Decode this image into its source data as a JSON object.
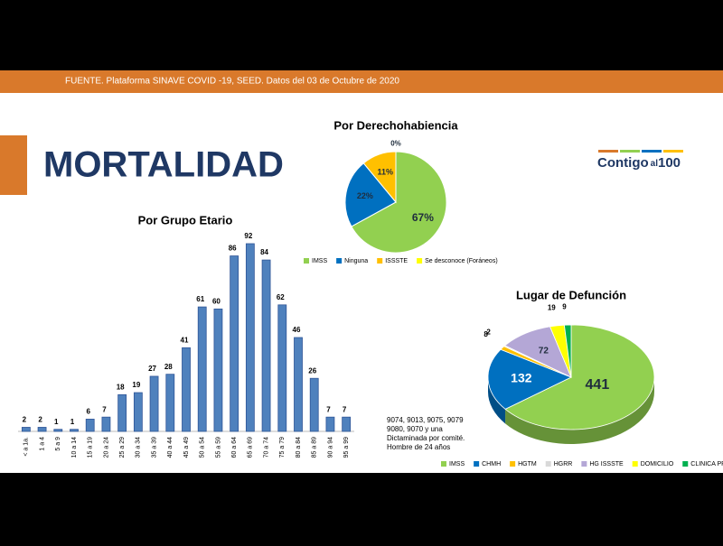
{
  "header": {
    "source": "FUENTE. Plataforma SINAVE COVID -19, SEED. Datos del 03 de Octubre de 2020"
  },
  "title": "MORTALIDAD",
  "logo": {
    "main": "Contigo",
    "small": "al",
    "number": "100"
  },
  "note": [
    "9074, 9013, 9075, 9079",
    "9080, 9070 y una",
    "Dictaminada por comité.",
    "Hombre de 24 años"
  ],
  "chart_data": [
    {
      "type": "bar",
      "title": "Por Grupo Etario",
      "color": "#4f81bd",
      "categories": [
        "< a 1a.",
        "1 a 4",
        "5 a 9",
        "10 a 14",
        "15 a 19",
        "20 a 24",
        "25 a 29",
        "30 a 34",
        "35 a 39",
        "40 a 44",
        "45 a 49",
        "50 a 54",
        "55 a 59",
        "60 a 64",
        "65 a 69",
        "70 a 74",
        "75 a 79",
        "80 a 84",
        "85 a 89",
        "90 a 94",
        "95 a 99"
      ],
      "values": [
        2,
        2,
        1,
        1,
        6,
        7,
        18,
        19,
        27,
        28,
        41,
        61,
        60,
        86,
        92,
        84,
        62,
        46,
        26,
        7,
        7
      ]
    },
    {
      "type": "pie",
      "title": "Por Derechohabiencia",
      "categories": [
        "IMSS",
        "Ninguna",
        "ISSSTE",
        "Se desconoce (Foráneos)"
      ],
      "values": [
        67,
        22,
        11,
        0
      ],
      "value_labels": [
        "67%",
        "22%",
        "11%",
        "0%"
      ],
      "colors": [
        "#92d050",
        "#0070c0",
        "#ffc000",
        "#ffff00"
      ]
    },
    {
      "type": "pie3d",
      "title": "Lugar de Defunción",
      "categories": [
        "IMSS",
        "CHMH",
        "HGTM",
        "HGRR",
        "HG ISSSTE",
        "DOMICILIO",
        "CLINICA PRIVADA"
      ],
      "values": [
        441,
        132,
        8,
        2,
        72,
        19,
        9
      ],
      "colors": [
        "#92d050",
        "#0070c0",
        "#ffc000",
        "#d9d9d9",
        "#b4a7d6",
        "#ffff00",
        "#00b050"
      ]
    }
  ]
}
